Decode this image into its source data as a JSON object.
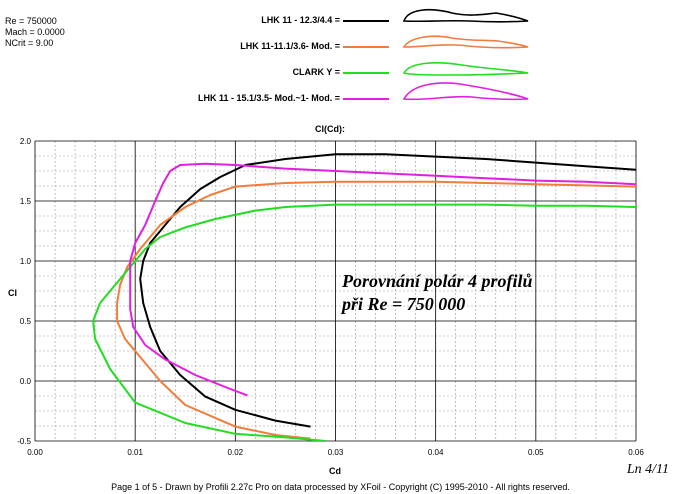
{
  "params": {
    "re": "Re = 750000",
    "mach": "Mach = 0.0000",
    "ncrit": "NCrit = 9.00"
  },
  "legend": [
    {
      "label": "LHK 11 - 12.3/4.4 =",
      "color": "#000000"
    },
    {
      "label": "LHK 11-11.1/3.6- Mod. =",
      "color": "#f07d3c"
    },
    {
      "label": "CLARK Y =",
      "color": "#22dd22"
    },
    {
      "label": "LHK 11 - 15.1/3.5- Mod.~1- Mod. =",
      "color": "#e020e0"
    }
  ],
  "overlay": {
    "line1": "Porovnání polár 4 profilů",
    "line2": "při Re = 750 000"
  },
  "footer": "Page 1 of 5   -   Drawn by Profili 2.27c Pro on data processed by  XFoil - Copyright (C) 1995-2010 - All rights reserved.",
  "page_code": "Ln 4/11",
  "chart_data": {
    "type": "line",
    "title": "Cl(Cd):",
    "xlabel": "Cd",
    "ylabel": "Cl",
    "xlim": [
      0,
      0.06
    ],
    "ylim": [
      -0.5,
      2.0
    ],
    "x_ticks": [
      "0.00",
      "0.01",
      "0.02",
      "0.03",
      "0.04",
      "0.05",
      "0.06"
    ],
    "y_ticks": [
      "-0.5",
      "0.0",
      "0.5",
      "1.0",
      "1.5",
      "2.0"
    ],
    "grid": true,
    "series": [
      {
        "name": "LHK 11 - 12.3/4.4",
        "color": "#000000",
        "points": [
          [
            0.0275,
            -0.38
          ],
          [
            0.024,
            -0.33
          ],
          [
            0.02,
            -0.24
          ],
          [
            0.017,
            -0.13
          ],
          [
            0.0145,
            0.05
          ],
          [
            0.0125,
            0.25
          ],
          [
            0.0115,
            0.45
          ],
          [
            0.0108,
            0.65
          ],
          [
            0.0105,
            0.85
          ],
          [
            0.0108,
            1.0
          ],
          [
            0.0115,
            1.15
          ],
          [
            0.013,
            1.3
          ],
          [
            0.0145,
            1.45
          ],
          [
            0.0165,
            1.6
          ],
          [
            0.0185,
            1.7
          ],
          [
            0.021,
            1.8
          ],
          [
            0.025,
            1.85
          ],
          [
            0.03,
            1.89
          ],
          [
            0.035,
            1.89
          ],
          [
            0.04,
            1.87
          ],
          [
            0.045,
            1.85
          ],
          [
            0.05,
            1.82
          ],
          [
            0.055,
            1.79
          ],
          [
            0.06,
            1.76
          ]
        ]
      },
      {
        "name": "LHK 11-11.1/3.6- Mod.",
        "color": "#f07d3c",
        "points": [
          [
            0.0275,
            -0.48
          ],
          [
            0.024,
            -0.45
          ],
          [
            0.02,
            -0.38
          ],
          [
            0.015,
            -0.2
          ],
          [
            0.0125,
            0.0
          ],
          [
            0.0105,
            0.2
          ],
          [
            0.009,
            0.35
          ],
          [
            0.0082,
            0.5
          ],
          [
            0.0082,
            0.65
          ],
          [
            0.0085,
            0.8
          ],
          [
            0.0092,
            0.95
          ],
          [
            0.0105,
            1.1
          ],
          [
            0.0125,
            1.3
          ],
          [
            0.015,
            1.45
          ],
          [
            0.0175,
            1.55
          ],
          [
            0.02,
            1.62
          ],
          [
            0.025,
            1.65
          ],
          [
            0.03,
            1.66
          ],
          [
            0.035,
            1.66
          ],
          [
            0.04,
            1.66
          ],
          [
            0.045,
            1.65
          ],
          [
            0.05,
            1.64
          ],
          [
            0.055,
            1.63
          ],
          [
            0.06,
            1.62
          ]
        ]
      },
      {
        "name": "CLARK Y",
        "color": "#22dd22",
        "points": [
          [
            0.029,
            -0.5
          ],
          [
            0.025,
            -0.47
          ],
          [
            0.02,
            -0.44
          ],
          [
            0.015,
            -0.35
          ],
          [
            0.01,
            -0.18
          ],
          [
            0.0075,
            0.1
          ],
          [
            0.006,
            0.35
          ],
          [
            0.0058,
            0.5
          ],
          [
            0.0065,
            0.65
          ],
          [
            0.008,
            0.8
          ],
          [
            0.0095,
            0.95
          ],
          [
            0.011,
            1.1
          ],
          [
            0.0125,
            1.2
          ],
          [
            0.015,
            1.28
          ],
          [
            0.018,
            1.35
          ],
          [
            0.022,
            1.42
          ],
          [
            0.025,
            1.45
          ],
          [
            0.03,
            1.47
          ],
          [
            0.035,
            1.47
          ],
          [
            0.04,
            1.47
          ],
          [
            0.045,
            1.47
          ],
          [
            0.05,
            1.46
          ],
          [
            0.055,
            1.46
          ],
          [
            0.06,
            1.45
          ]
        ]
      },
      {
        "name": "LHK 11 - 15.1/3.5- Mod.~1- Mod.",
        "color": "#e020e0",
        "points": [
          [
            0.0212,
            -0.12
          ],
          [
            0.019,
            -0.05
          ],
          [
            0.016,
            0.05
          ],
          [
            0.013,
            0.18
          ],
          [
            0.011,
            0.3
          ],
          [
            0.0098,
            0.45
          ],
          [
            0.0095,
            0.6
          ],
          [
            0.0095,
            0.75
          ],
          [
            0.0095,
            0.9
          ],
          [
            0.0095,
            1.0
          ],
          [
            0.01,
            1.15
          ],
          [
            0.011,
            1.3
          ],
          [
            0.012,
            1.5
          ],
          [
            0.0128,
            1.65
          ],
          [
            0.0135,
            1.75
          ],
          [
            0.0145,
            1.8
          ],
          [
            0.017,
            1.81
          ],
          [
            0.02,
            1.8
          ],
          [
            0.025,
            1.77
          ],
          [
            0.03,
            1.75
          ],
          [
            0.035,
            1.73
          ],
          [
            0.04,
            1.71
          ],
          [
            0.045,
            1.69
          ],
          [
            0.05,
            1.67
          ],
          [
            0.055,
            1.66
          ],
          [
            0.06,
            1.64
          ]
        ]
      }
    ]
  }
}
